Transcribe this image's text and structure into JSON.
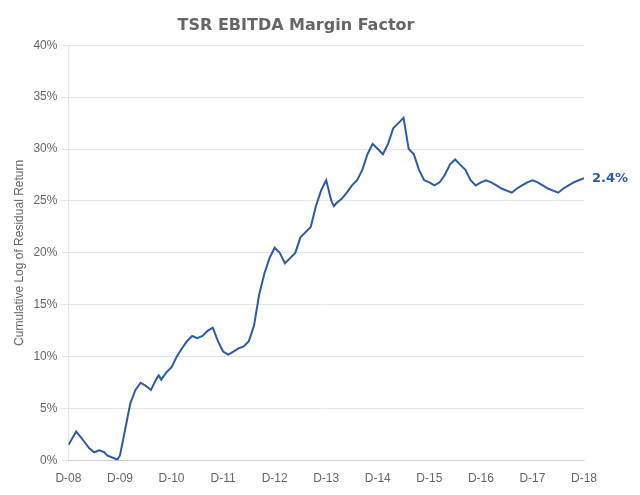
{
  "chart_data": {
    "type": "line",
    "title": "TSR EBITDA Margin Factor",
    "ylabel": "Cumulative Log of Residual Return",
    "color": "#2B5BA8",
    "x": [
      0.0,
      0.15,
      0.25,
      0.4,
      0.5,
      0.6,
      0.7,
      0.75,
      0.85,
      0.9,
      0.95,
      1.0,
      1.1,
      1.2,
      1.3,
      1.4,
      1.5,
      1.6,
      1.7,
      1.75,
      1.8,
      1.9,
      2.0,
      2.1,
      2.2,
      2.3,
      2.4,
      2.5,
      2.6,
      2.7,
      2.8,
      2.9,
      3.0,
      3.1,
      3.2,
      3.3,
      3.4,
      3.5,
      3.6,
      3.65,
      3.7,
      3.8,
      3.9,
      4.0,
      4.1,
      4.15,
      4.2,
      4.3,
      4.4,
      4.5,
      4.6,
      4.7,
      4.8,
      4.9,
      5.0,
      5.1,
      5.15,
      5.2,
      5.3,
      5.4,
      5.5,
      5.6,
      5.7,
      5.8,
      5.9,
      6.0,
      6.1,
      6.15,
      6.2,
      6.3,
      6.4,
      6.5,
      6.6,
      6.7,
      6.8,
      6.9,
      7.0,
      7.1,
      7.2,
      7.3,
      7.4,
      7.5,
      7.6,
      7.7,
      7.8,
      7.9,
      8.0,
      8.1,
      8.2,
      8.3,
      8.4,
      8.5,
      8.6,
      8.7,
      8.8,
      8.9,
      9.0,
      9.1,
      9.2,
      9.3,
      9.4,
      9.5,
      9.6,
      9.7,
      9.8,
      9.9,
      10.0
    ],
    "values": [
      0.015,
      0.028,
      0.022,
      0.012,
      0.008,
      0.01,
      0.008,
      0.005,
      0.003,
      0.002,
      0.001,
      0.005,
      0.03,
      0.055,
      0.068,
      0.075,
      0.072,
      0.068,
      0.078,
      0.082,
      0.078,
      0.085,
      0.09,
      0.1,
      0.108,
      0.115,
      0.12,
      0.118,
      0.12,
      0.125,
      0.128,
      0.115,
      0.105,
      0.102,
      0.105,
      0.108,
      0.11,
      0.115,
      0.13,
      0.145,
      0.16,
      0.18,
      0.195,
      0.205,
      0.2,
      0.195,
      0.19,
      0.195,
      0.2,
      0.215,
      0.22,
      0.225,
      0.245,
      0.26,
      0.27,
      0.25,
      0.245,
      0.248,
      0.252,
      0.258,
      0.265,
      0.27,
      0.28,
      0.295,
      0.305,
      0.3,
      0.295,
      0.3,
      0.305,
      0.32,
      0.325,
      0.33,
      0.3,
      0.295,
      0.28,
      0.27,
      0.268,
      0.265,
      0.268,
      0.275,
      0.285,
      0.29,
      0.285,
      0.28,
      0.27,
      0.265,
      0.268,
      0.27,
      0.268,
      0.265,
      0.262,
      0.26,
      0.258,
      0.262,
      0.265,
      0.268,
      0.27,
      0.268,
      0.265,
      0.262,
      0.26,
      0.258,
      0.262,
      0.265,
      0.268,
      0.27,
      0.272
    ],
    "xlim": [
      0,
      10
    ],
    "xticks": [
      {
        "value": 0,
        "label": "D-08"
      },
      {
        "value": 1,
        "label": "D-09"
      },
      {
        "value": 2,
        "label": "D-10"
      },
      {
        "value": 3,
        "label": "D-11"
      },
      {
        "value": 4,
        "label": "D-12"
      },
      {
        "value": 5,
        "label": "D-13"
      },
      {
        "value": 6,
        "label": "D-14"
      },
      {
        "value": 7,
        "label": "D-15"
      },
      {
        "value": 8,
        "label": "D-16"
      },
      {
        "value": 9,
        "label": "D-17"
      },
      {
        "value": 10,
        "label": "D-18"
      }
    ],
    "ylim": [
      0.0,
      0.4
    ],
    "yticks": [
      {
        "value": 0.0,
        "label": "0%"
      },
      {
        "value": 0.05,
        "label": "5%"
      },
      {
        "value": 0.1,
        "label": "10%"
      },
      {
        "value": 0.15,
        "label": "15%"
      },
      {
        "value": 0.2,
        "label": "20%"
      },
      {
        "value": 0.25,
        "label": "25%"
      },
      {
        "value": 0.3,
        "label": "30%"
      },
      {
        "value": 0.35,
        "label": "35%"
      },
      {
        "value": 0.4,
        "label": "40%"
      }
    ],
    "grid": "y",
    "annotations": [
      {
        "text": "2.4%",
        "color": "#2B5BA8"
      }
    ]
  }
}
